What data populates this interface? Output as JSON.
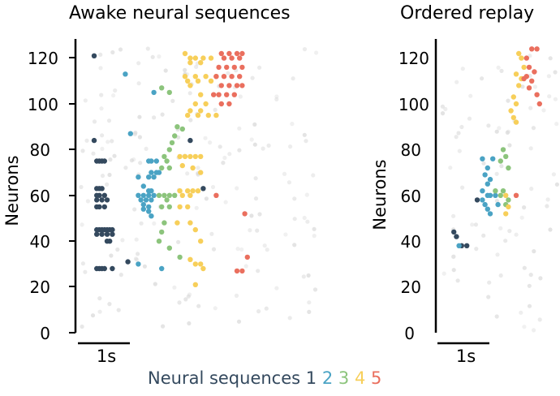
{
  "panels": [
    {
      "id": "left",
      "title": "Awake neural sequences",
      "ylabel": "Neurons",
      "scalebar_label": "1s",
      "yticks": [
        "0",
        "20",
        "40",
        "60",
        "80",
        "100",
        "120"
      ]
    },
    {
      "id": "right",
      "title": "Ordered replay",
      "ylabel": "Neurons",
      "scalebar_label": "1s",
      "yticks": [
        "0",
        "20",
        "40",
        "60",
        "80",
        "100",
        "120"
      ]
    }
  ],
  "legend": {
    "label": "Neural sequences",
    "items": [
      "1",
      "2",
      "3",
      "4",
      "5"
    ]
  },
  "colors": {
    "seq1": "#34495e",
    "seq2": "#4aa3c4",
    "seq3": "#8cc47c",
    "seq4": "#f7cf5a",
    "seq5": "#ea6f5e",
    "background": "#d6d6d6",
    "legend_text": "#34495e"
  },
  "chart_data": [
    {
      "type": "scatter",
      "title": "Awake neural sequences",
      "ylabel": "Neurons",
      "ylim": [
        0,
        125
      ],
      "xlim": [
        0,
        5
      ],
      "x_units": "seconds (scale bar = 1s)",
      "series": [
        {
          "name": "1",
          "color": "#34495e",
          "points": [
            [
              0.25,
              121
            ],
            [
              0.25,
              84
            ],
            [
              0.3,
              75
            ],
            [
              0.35,
              75
            ],
            [
              0.4,
              75
            ],
            [
              0.45,
              75
            ],
            [
              0.3,
              63
            ],
            [
              0.35,
              63
            ],
            [
              0.4,
              63
            ],
            [
              0.3,
              60
            ],
            [
              0.35,
              60
            ],
            [
              0.45,
              60
            ],
            [
              0.3,
              58
            ],
            [
              0.4,
              58
            ],
            [
              0.5,
              58
            ],
            [
              0.3,
              55
            ],
            [
              0.35,
              55
            ],
            [
              0.45,
              55
            ],
            [
              0.3,
              45
            ],
            [
              0.35,
              45
            ],
            [
              0.4,
              45
            ],
            [
              0.45,
              45
            ],
            [
              0.5,
              45
            ],
            [
              0.55,
              45
            ],
            [
              0.6,
              45
            ],
            [
              0.3,
              43
            ],
            [
              0.4,
              43
            ],
            [
              0.5,
              43
            ],
            [
              0.6,
              43
            ],
            [
              0.5,
              40
            ],
            [
              0.55,
              40
            ],
            [
              0.3,
              28
            ],
            [
              0.35,
              28
            ],
            [
              0.4,
              28
            ],
            [
              0.45,
              28
            ],
            [
              0.6,
              28
            ],
            [
              0.9,
              31
            ],
            [
              2.35,
              63
            ],
            [
              2.1,
              84
            ]
          ]
        },
        {
          "name": "2",
          "color": "#4aa3c4",
          "points": [
            [
              0.85,
              113
            ],
            [
              1.4,
              105
            ],
            [
              0.95,
              87
            ],
            [
              1.3,
              75
            ],
            [
              1.35,
              75
            ],
            [
              1.45,
              75
            ],
            [
              1.35,
              70
            ],
            [
              1.45,
              70
            ],
            [
              1.5,
              70
            ],
            [
              1.1,
              68
            ],
            [
              1.3,
              68
            ],
            [
              1.4,
              68
            ],
            [
              1.2,
              64
            ],
            [
              1.3,
              62
            ],
            [
              1.35,
              62
            ],
            [
              1.1,
              60
            ],
            [
              1.2,
              60
            ],
            [
              1.3,
              60
            ],
            [
              1.4,
              60
            ],
            [
              1.15,
              58
            ],
            [
              1.25,
              58
            ],
            [
              1.35,
              58
            ],
            [
              1.2,
              56
            ],
            [
              1.3,
              55
            ],
            [
              1.2,
              54
            ],
            [
              1.3,
              53
            ],
            [
              1.35,
              51
            ],
            [
              1.55,
              28
            ],
            [
              1.1,
              30
            ]
          ]
        },
        {
          "name": "3",
          "color": "#8cc47c",
          "points": [
            [
              1.55,
              107
            ],
            [
              1.7,
              105
            ],
            [
              1.85,
              90
            ],
            [
              1.95,
              89
            ],
            [
              1.8,
              86
            ],
            [
              1.75,
              83
            ],
            [
              1.7,
              80
            ],
            [
              1.6,
              77
            ],
            [
              1.65,
              75
            ],
            [
              1.55,
              72
            ],
            [
              1.7,
              72
            ],
            [
              1.5,
              60
            ],
            [
              1.6,
              60
            ],
            [
              1.7,
              60
            ],
            [
              1.8,
              60
            ],
            [
              1.65,
              58
            ],
            [
              1.55,
              55
            ],
            [
              1.7,
              55
            ],
            [
              1.6,
              48
            ],
            [
              1.55,
              44
            ],
            [
              1.5,
              40
            ],
            [
              1.7,
              37
            ],
            [
              1.9,
              33
            ]
          ]
        },
        {
          "name": "4",
          "color": "#f7cf5a",
          "points": [
            [
              2.0,
              122
            ],
            [
              2.1,
              120
            ],
            [
              2.2,
              120
            ],
            [
              2.35,
              120
            ],
            [
              2.5,
              120
            ],
            [
              2.1,
              118
            ],
            [
              2.3,
              118
            ],
            [
              2.0,
              112
            ],
            [
              2.2,
              112
            ],
            [
              2.4,
              112
            ],
            [
              2.6,
              112
            ],
            [
              2.05,
              110
            ],
            [
              2.25,
              110
            ],
            [
              2.5,
              110
            ],
            [
              2.1,
              108
            ],
            [
              2.3,
              104
            ],
            [
              2.2,
              100
            ],
            [
              2.4,
              100
            ],
            [
              2.1,
              97
            ],
            [
              2.3,
              97
            ],
            [
              2.05,
              95
            ],
            [
              2.25,
              95
            ],
            [
              2.45,
              95
            ],
            [
              2.6,
              95
            ],
            [
              1.9,
              77
            ],
            [
              2.0,
              77
            ],
            [
              2.1,
              77
            ],
            [
              2.2,
              77
            ],
            [
              2.3,
              77
            ],
            [
              1.95,
              73
            ],
            [
              2.15,
              72
            ],
            [
              2.3,
              70
            ],
            [
              1.9,
              62
            ],
            [
              2.05,
              62
            ],
            [
              2.15,
              62
            ],
            [
              2.25,
              62
            ],
            [
              1.95,
              60
            ],
            [
              2.1,
              60
            ],
            [
              1.9,
              55
            ],
            [
              2.05,
              55
            ],
            [
              1.85,
              48
            ],
            [
              2.1,
              48
            ],
            [
              2.2,
              45
            ],
            [
              2.3,
              40
            ],
            [
              2.1,
              32
            ],
            [
              2.2,
              30
            ],
            [
              2.3,
              30
            ],
            [
              2.35,
              28
            ],
            [
              2.2,
              21
            ]
          ]
        },
        {
          "name": "5",
          "color": "#ea6f5e",
          "points": [
            [
              2.7,
              122
            ],
            [
              2.85,
              122
            ],
            [
              3.0,
              122
            ],
            [
              3.1,
              122
            ],
            [
              2.75,
              120
            ],
            [
              2.9,
              120
            ],
            [
              3.05,
              120
            ],
            [
              2.65,
              116
            ],
            [
              2.8,
              116
            ],
            [
              2.95,
              116
            ],
            [
              3.1,
              116
            ],
            [
              2.6,
              112
            ],
            [
              2.75,
              112
            ],
            [
              2.9,
              112
            ],
            [
              3.05,
              112
            ],
            [
              2.7,
              108
            ],
            [
              2.85,
              108
            ],
            [
              3.0,
              108
            ],
            [
              3.1,
              108
            ],
            [
              2.65,
              104
            ],
            [
              2.8,
              104
            ],
            [
              2.95,
              104
            ],
            [
              2.7,
              100
            ],
            [
              2.85,
              100
            ],
            [
              2.55,
              104
            ],
            [
              2.6,
              60
            ],
            [
              3.15,
              52
            ],
            [
              3.2,
              33
            ],
            [
              3.0,
              27
            ],
            [
              3.1,
              27
            ]
          ]
        }
      ]
    },
    {
      "type": "scatter",
      "title": "Ordered replay",
      "ylabel": "Neurons",
      "ylim": [
        0,
        125
      ],
      "xlim": [
        0,
        2.8
      ],
      "x_units": "seconds (scale bar = 1s)",
      "series": [
        {
          "name": "1",
          "color": "#34495e",
          "points": [
            [
              0.3,
              44
            ],
            [
              0.35,
              42
            ],
            [
              0.75,
              58
            ],
            [
              0.45,
              38
            ],
            [
              0.55,
              38
            ]
          ]
        },
        {
          "name": "2",
          "color": "#4aa3c4",
          "points": [
            [
              0.4,
              38
            ],
            [
              0.85,
              76
            ],
            [
              0.95,
              72
            ],
            [
              0.9,
              69
            ],
            [
              1.0,
              67
            ],
            [
              0.95,
              65
            ],
            [
              0.85,
              62
            ],
            [
              0.95,
              60
            ],
            [
              1.0,
              60
            ],
            [
              0.85,
              58
            ],
            [
              0.9,
              56
            ],
            [
              0.95,
              54
            ],
            [
              1.0,
              52
            ],
            [
              1.1,
              60
            ],
            [
              1.15,
              56
            ],
            [
              1.05,
              76
            ]
          ]
        },
        {
          "name": "3",
          "color": "#8cc47c",
          "points": [
            [
              1.25,
              80
            ],
            [
              1.3,
              77
            ],
            [
              1.2,
              75
            ],
            [
              1.35,
              72
            ],
            [
              1.25,
              62
            ],
            [
              1.2,
              60
            ],
            [
              1.35,
              58
            ],
            [
              1.3,
              56
            ],
            [
              1.1,
              62
            ]
          ]
        },
        {
          "name": "4",
          "color": "#f7cf5a",
          "points": [
            [
              1.55,
              122
            ],
            [
              1.6,
              120
            ],
            [
              1.65,
              116
            ],
            [
              1.5,
              113
            ],
            [
              1.6,
              111
            ],
            [
              1.55,
              108
            ],
            [
              1.45,
              103
            ],
            [
              1.5,
              100
            ],
            [
              1.4,
              97
            ],
            [
              1.45,
              94
            ],
            [
              1.5,
              92
            ],
            [
              1.3,
              60
            ],
            [
              1.35,
              55
            ],
            [
              1.3,
              52
            ]
          ]
        },
        {
          "name": "5",
          "color": "#ea6f5e",
          "points": [
            [
              1.8,
              124
            ],
            [
              1.9,
              124
            ],
            [
              1.7,
              120
            ],
            [
              1.75,
              116
            ],
            [
              1.85,
              114
            ],
            [
              1.7,
              112
            ],
            [
              1.8,
              110
            ],
            [
              1.75,
              107
            ],
            [
              1.9,
              104
            ],
            [
              1.95,
              100
            ],
            [
              1.65,
              111
            ],
            [
              1.5,
              60
            ]
          ]
        }
      ]
    }
  ]
}
